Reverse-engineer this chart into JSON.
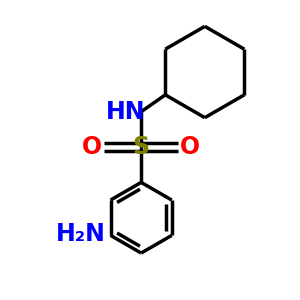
{
  "background_color": "#ffffff",
  "bond_color": "#000000",
  "bond_width": 2.5,
  "S_color": "#808000",
  "O_color": "#ff0000",
  "N_color": "#0000ff",
  "NH_text": "HN",
  "O_text": "O",
  "S_text": "S",
  "NH2_text": "H₂N",
  "figsize": [
    3.0,
    3.0
  ],
  "dpi": 100,
  "xlim": [
    0,
    10
  ],
  "ylim": [
    0,
    10
  ]
}
